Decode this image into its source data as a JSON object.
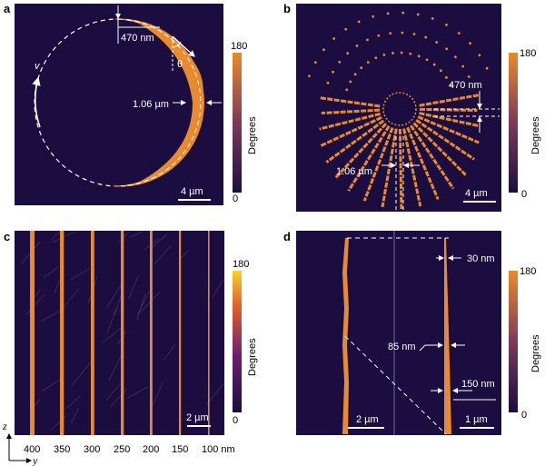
{
  "colors": {
    "bg": "#1b0d3f",
    "stripe": "#e98a2e",
    "stripe_dark": "#b85e1a",
    "annotation": "#ffffff"
  },
  "panels": {
    "a": {
      "label": "a",
      "width_label": "470 nm",
      "diameter_label": "1.06 µm",
      "angle_label": "θ",
      "velocity_label": "v",
      "scalebar": "4 µm",
      "colorbar": {
        "max": "180",
        "min": "0",
        "title": "Degrees"
      }
    },
    "b": {
      "label": "b",
      "width_label": "470 nm",
      "diameter_label": "1.06 µm",
      "scalebar": "4 µm",
      "colorbar": {
        "max": "180",
        "min": "0",
        "title": "Degrees"
      }
    },
    "c": {
      "label": "c",
      "scalebar": "2 µm",
      "colorbar": {
        "max": "180",
        "min": "0",
        "title": "Degrees"
      },
      "line_widths": [
        "400",
        "350",
        "300",
        "250",
        "200",
        "150",
        "100 nm"
      ],
      "axis_z": "z",
      "axis_y": "y"
    },
    "d": {
      "label": "d",
      "width_top": "30 nm",
      "width_mid": "85 nm",
      "width_bot": "150 nm",
      "scalebar_left": "2 µm",
      "scalebar_right": "1 µm",
      "colorbar": {
        "max": "180",
        "min": "0",
        "title": "Degrees"
      }
    }
  }
}
